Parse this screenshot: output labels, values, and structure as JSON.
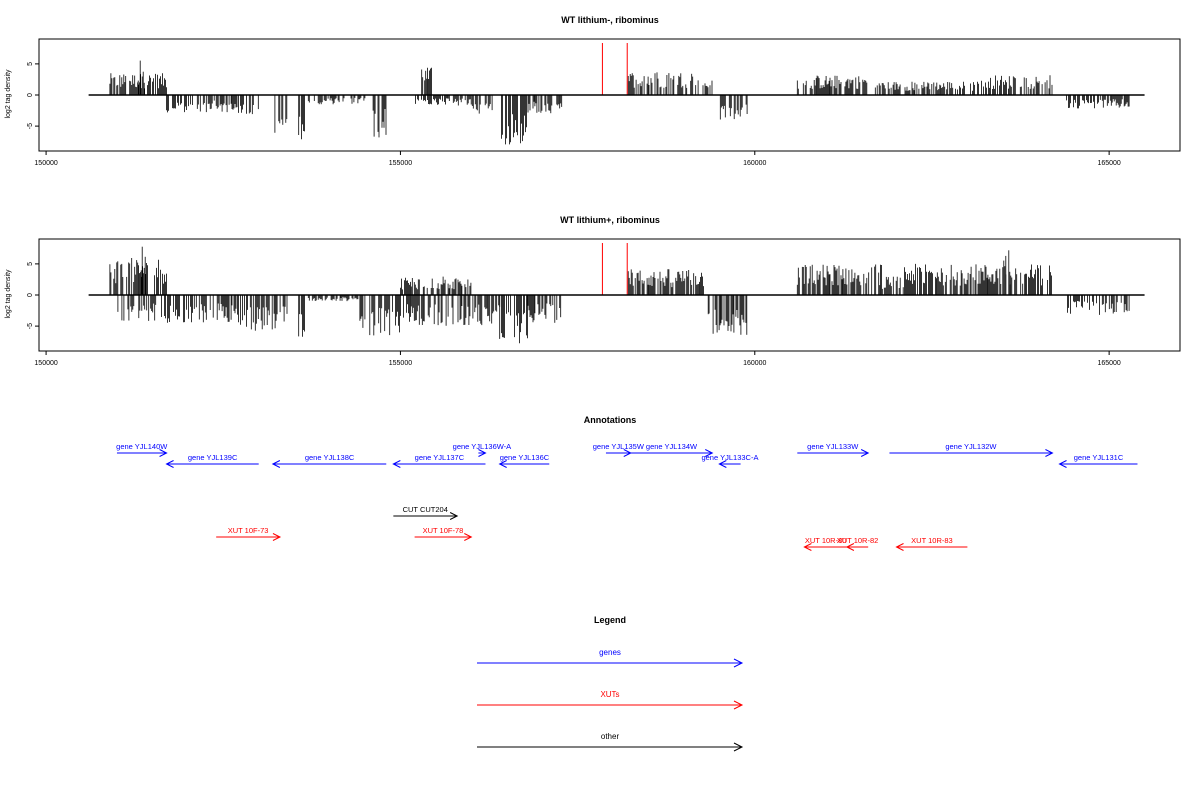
{
  "chart_data": [
    {
      "type": "bar",
      "title": "WT lithium-, ribominus",
      "xlabel": "",
      "ylabel": "log2 tag density",
      "xlim": [
        149900,
        166000
      ],
      "ylim": [
        -9,
        9
      ],
      "x_ticks": [
        150000,
        155000,
        160000,
        165000
      ],
      "y_ticks": [
        -5,
        0,
        5
      ],
      "region": [
        150600,
        165500
      ],
      "markers": [
        157850,
        158200
      ],
      "marker_color": "#ff0000",
      "bar_color": "#000000",
      "profile": [
        {
          "from": 150900,
          "to": 151700,
          "sign": 1,
          "amp": 3.5
        },
        {
          "from": 151300,
          "to": 151400,
          "sign": 1,
          "amp": 6.4
        },
        {
          "from": 151700,
          "to": 152700,
          "sign": -1,
          "amp": 2.8
        },
        {
          "from": 152700,
          "to": 153000,
          "sign": -1,
          "amp": 3.5
        },
        {
          "from": 153200,
          "to": 153400,
          "sign": -1,
          "amp": 6.5
        },
        {
          "from": 153550,
          "to": 153650,
          "sign": -1,
          "amp": 7.5
        },
        {
          "from": 153700,
          "to": 154500,
          "sign": -1,
          "amp": 1.5
        },
        {
          "from": 154600,
          "to": 154800,
          "sign": -1,
          "amp": 7.0
        },
        {
          "from": 155300,
          "to": 155450,
          "sign": 1,
          "amp": 4.5
        },
        {
          "from": 155200,
          "to": 156000,
          "sign": -1,
          "amp": 1.8
        },
        {
          "from": 156000,
          "to": 156300,
          "sign": -1,
          "amp": 3.0
        },
        {
          "from": 156400,
          "to": 156800,
          "sign": -1,
          "amp": 8.0
        },
        {
          "from": 156800,
          "to": 157300,
          "sign": -1,
          "amp": 3.0
        },
        {
          "from": 158200,
          "to": 159200,
          "sign": 1,
          "amp": 3.8
        },
        {
          "from": 159200,
          "to": 159400,
          "sign": 1,
          "amp": 2.5
        },
        {
          "from": 159500,
          "to": 159900,
          "sign": -1,
          "amp": 4.0
        },
        {
          "from": 160600,
          "to": 161600,
          "sign": 1,
          "amp": 3.2
        },
        {
          "from": 161700,
          "to": 163200,
          "sign": 1,
          "amp": 2.2
        },
        {
          "from": 163200,
          "to": 164200,
          "sign": 1,
          "amp": 3.2
        },
        {
          "from": 164400,
          "to": 165300,
          "sign": -1,
          "amp": 2.2
        }
      ]
    },
    {
      "type": "bar",
      "title": "WT lithium+, ribominus",
      "xlabel": "",
      "ylabel": "log2 tag density",
      "xlim": [
        149900,
        166000
      ],
      "ylim": [
        -9,
        9
      ],
      "x_ticks": [
        150000,
        155000,
        160000,
        165000
      ],
      "y_ticks": [
        -5,
        0,
        5
      ],
      "region": [
        150600,
        165500
      ],
      "markers": [
        157850,
        158200
      ],
      "marker_color": "#ff0000",
      "bar_color": "#000000",
      "profile": [
        {
          "from": 150900,
          "to": 151700,
          "sign": 1,
          "amp": 6.0
        },
        {
          "from": 151300,
          "to": 151400,
          "sign": 1,
          "amp": 8.0
        },
        {
          "from": 151000,
          "to": 152700,
          "sign": -1,
          "amp": 4.5
        },
        {
          "from": 152700,
          "to": 153400,
          "sign": -1,
          "amp": 6.0
        },
        {
          "from": 153550,
          "to": 153650,
          "sign": -1,
          "amp": 7.0
        },
        {
          "from": 153700,
          "to": 154400,
          "sign": -1,
          "amp": 1.0
        },
        {
          "from": 154400,
          "to": 155000,
          "sign": -1,
          "amp": 6.5
        },
        {
          "from": 155000,
          "to": 156000,
          "sign": 1,
          "amp": 3.0
        },
        {
          "from": 155000,
          "to": 156400,
          "sign": -1,
          "amp": 5.0
        },
        {
          "from": 156400,
          "to": 156800,
          "sign": -1,
          "amp": 8.0
        },
        {
          "from": 156800,
          "to": 157300,
          "sign": -1,
          "amp": 4.5
        },
        {
          "from": 158200,
          "to": 159300,
          "sign": 1,
          "amp": 4.2
        },
        {
          "from": 159300,
          "to": 159900,
          "sign": -1,
          "amp": 6.5
        },
        {
          "from": 160600,
          "to": 161800,
          "sign": 1,
          "amp": 5.0
        },
        {
          "from": 161800,
          "to": 162100,
          "sign": 1,
          "amp": 3.0
        },
        {
          "from": 162100,
          "to": 164200,
          "sign": 1,
          "amp": 5.0
        },
        {
          "from": 163500,
          "to": 163600,
          "sign": 1,
          "amp": 8.0
        },
        {
          "from": 164400,
          "to": 165300,
          "sign": -1,
          "amp": 3.2
        }
      ]
    }
  ],
  "annotations": {
    "title": "Annotations",
    "xlim": [
      149900,
      166000
    ],
    "genes_color": "#0000ff",
    "xuts_color": "#ff0000",
    "other_color": "#000000",
    "genes": [
      {
        "label": "gene YJL140W",
        "start": 151000,
        "end": 151700,
        "dir": "right",
        "row": 0
      },
      {
        "label": "gene YJL139C",
        "start": 151700,
        "end": 153000,
        "dir": "left",
        "row": 1
      },
      {
        "label": "gene YJL138C",
        "start": 153200,
        "end": 154800,
        "dir": "left",
        "row": 1
      },
      {
        "label": "gene YJL137C",
        "start": 154900,
        "end": 156200,
        "dir": "left",
        "row": 1
      },
      {
        "label": "gene YJL136W-A",
        "start": 156100,
        "end": 156200,
        "dir": "right",
        "row": 0
      },
      {
        "label": "gene YJL136C",
        "start": 156400,
        "end": 157100,
        "dir": "left",
        "row": 1
      },
      {
        "label": "gene YJL135W",
        "start": 157900,
        "end": 158250,
        "dir": "right",
        "row": 0
      },
      {
        "label": "gene YJL134W",
        "start": 158250,
        "end": 159400,
        "dir": "right",
        "row": 0
      },
      {
        "label": "gene YJL133C-A",
        "start": 159500,
        "end": 159800,
        "dir": "left",
        "row": 1
      },
      {
        "label": "gene YJL133W",
        "start": 160600,
        "end": 161600,
        "dir": "right",
        "row": 0
      },
      {
        "label": "gene YJL132W",
        "start": 161900,
        "end": 164200,
        "dir": "right",
        "row": 0
      },
      {
        "label": "gene YJL131C",
        "start": 164300,
        "end": 165400,
        "dir": "left",
        "row": 1
      }
    ],
    "others": [
      {
        "label": "CUT CUT204",
        "start": 154900,
        "end": 155800,
        "dir": "right",
        "row": 2
      }
    ],
    "xuts": [
      {
        "label": "XUT 10F-73",
        "start": 152400,
        "end": 153300,
        "dir": "right",
        "row": 3
      },
      {
        "label": "XUT 10F-78",
        "start": 155200,
        "end": 156000,
        "dir": "right",
        "row": 3
      },
      {
        "label": "XUT 10R-80",
        "start": 160700,
        "end": 161300,
        "dir": "left",
        "row": 4
      },
      {
        "label": "XUT 10R-82",
        "start": 161300,
        "end": 161600,
        "dir": "left",
        "row": 4
      },
      {
        "label": "XUT 10R-83",
        "start": 162000,
        "end": 163000,
        "dir": "left",
        "row": 4
      }
    ]
  },
  "legend": {
    "title": "Legend",
    "items": [
      {
        "label": "genes",
        "color": "#0000ff"
      },
      {
        "label": "XUTs",
        "color": "#ff0000"
      },
      {
        "label": "other",
        "color": "#000000"
      }
    ]
  }
}
